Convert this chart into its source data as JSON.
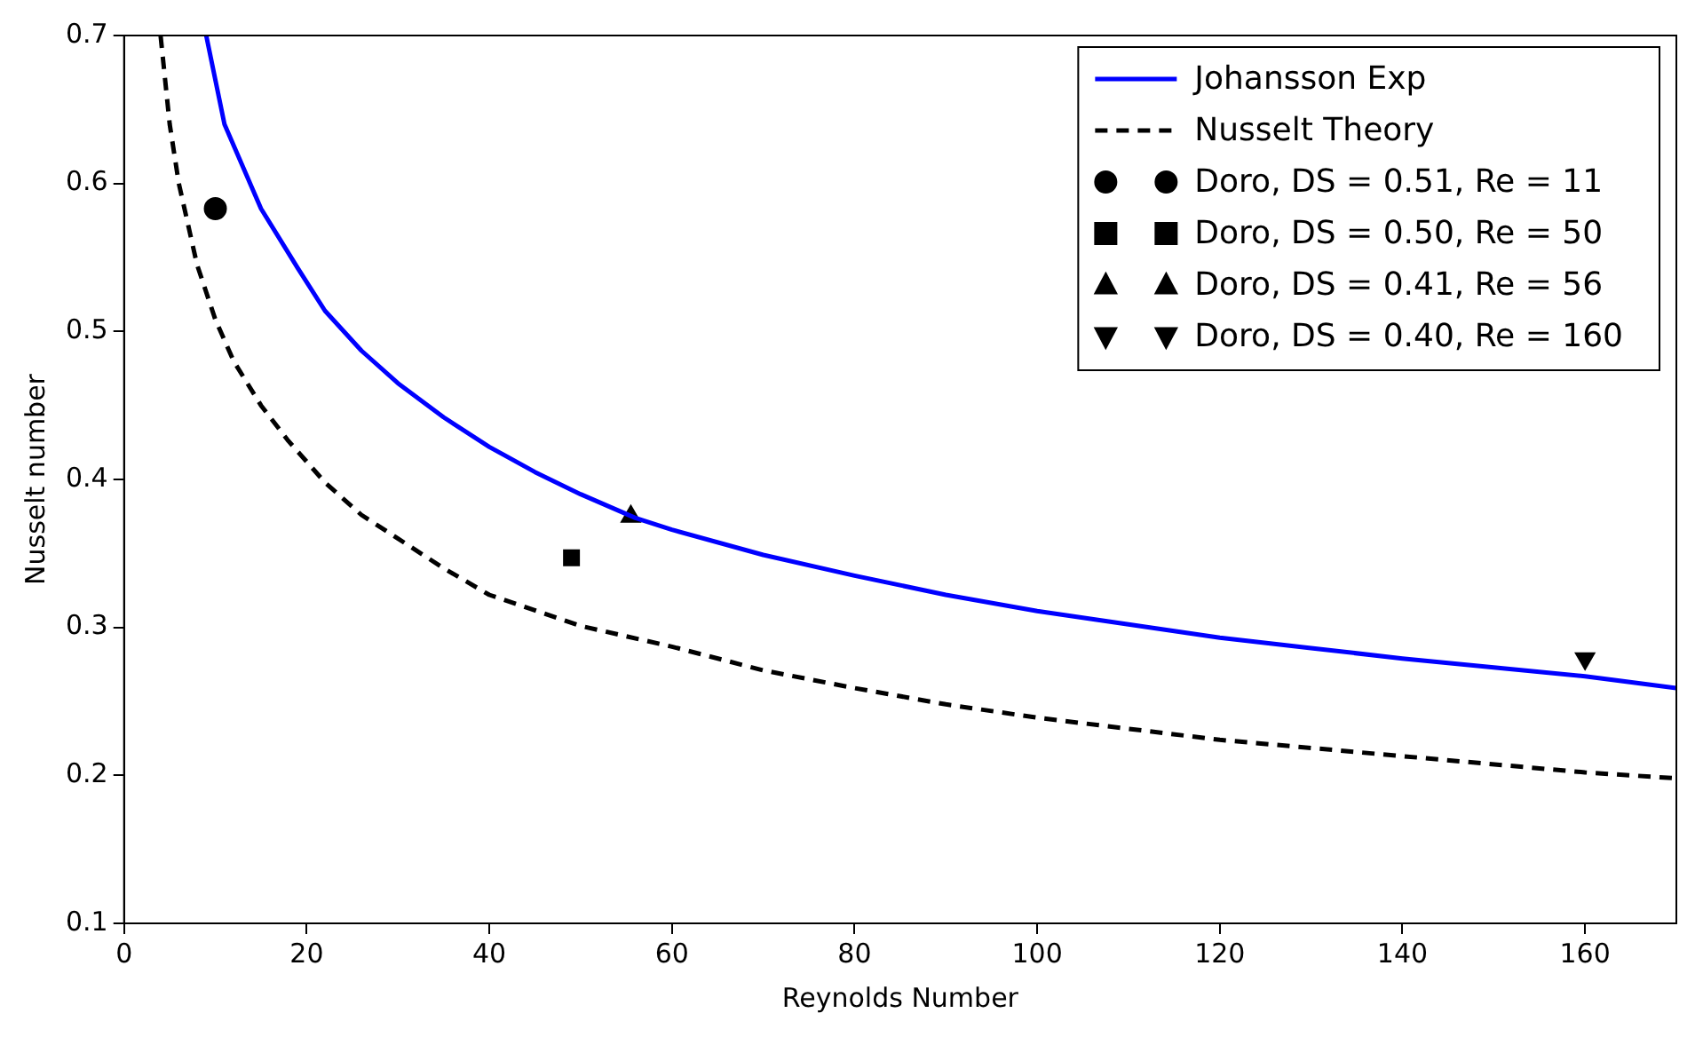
{
  "chart_data": {
    "type": "line",
    "xlabel": "Reynolds Number",
    "ylabel": "Nusselt number",
    "xlim": [
      0,
      170
    ],
    "xticks": [
      0,
      20,
      40,
      60,
      80,
      100,
      120,
      140,
      160
    ],
    "ylim": [
      0.1,
      0.7
    ],
    "yticks": [
      0.1,
      0.2,
      0.3,
      0.4,
      0.5,
      0.6,
      0.7
    ],
    "grid": false,
    "legend": "top right",
    "series": [
      {
        "name": "Johansson Exp",
        "type": "line",
        "color": "#0000ff",
        "line_style": "solid",
        "marker": "none",
        "x": [
          9,
          11,
          15,
          19,
          22,
          26,
          30,
          35,
          40,
          45,
          50,
          56,
          60,
          70,
          80,
          90,
          100,
          110,
          120,
          130,
          140,
          150,
          160,
          170
        ],
        "values": [
          0.7,
          0.64,
          0.583,
          0.543,
          0.514,
          0.487,
          0.465,
          0.442,
          0.422,
          0.405,
          0.39,
          0.374,
          0.366,
          0.349,
          0.335,
          0.322,
          0.311,
          0.302,
          0.293,
          0.286,
          0.279,
          0.273,
          0.267,
          0.259
        ]
      },
      {
        "name": "Nusselt Theory",
        "type": "line",
        "color": "#000000",
        "line_style": "dashed",
        "marker": "none",
        "x": [
          4,
          5,
          6,
          8,
          10,
          12,
          15,
          18,
          22,
          26,
          30,
          35,
          40,
          50,
          60,
          70,
          80,
          90,
          100,
          120,
          140,
          160,
          170
        ],
        "values": [
          0.7,
          0.64,
          0.6,
          0.545,
          0.508,
          0.48,
          0.45,
          0.426,
          0.398,
          0.376,
          0.36,
          0.34,
          0.322,
          0.301,
          0.287,
          0.271,
          0.259,
          0.248,
          0.239,
          0.224,
          0.213,
          0.202,
          0.198
        ]
      },
      {
        "name": "Doro, DS = 0.51, Re = 11",
        "type": "scatter",
        "color": "#000000",
        "marker": "circle",
        "x": [
          10
        ],
        "values": [
          0.583
        ]
      },
      {
        "name": "Doro, DS = 0.50, Re = 50",
        "type": "scatter",
        "color": "#000000",
        "marker": "square",
        "x": [
          49
        ],
        "values": [
          0.347
        ]
      },
      {
        "name": "Doro, DS = 0.41, Re = 56",
        "type": "scatter",
        "color": "#000000",
        "marker": "triangle",
        "x": [
          55.5
        ],
        "values": [
          0.375
        ]
      },
      {
        "name": "Doro, DS = 0.40, Re = 160",
        "type": "scatter",
        "color": "#000000",
        "marker": "triangle_down",
        "x": [
          160
        ],
        "values": [
          0.279
        ]
      }
    ]
  }
}
